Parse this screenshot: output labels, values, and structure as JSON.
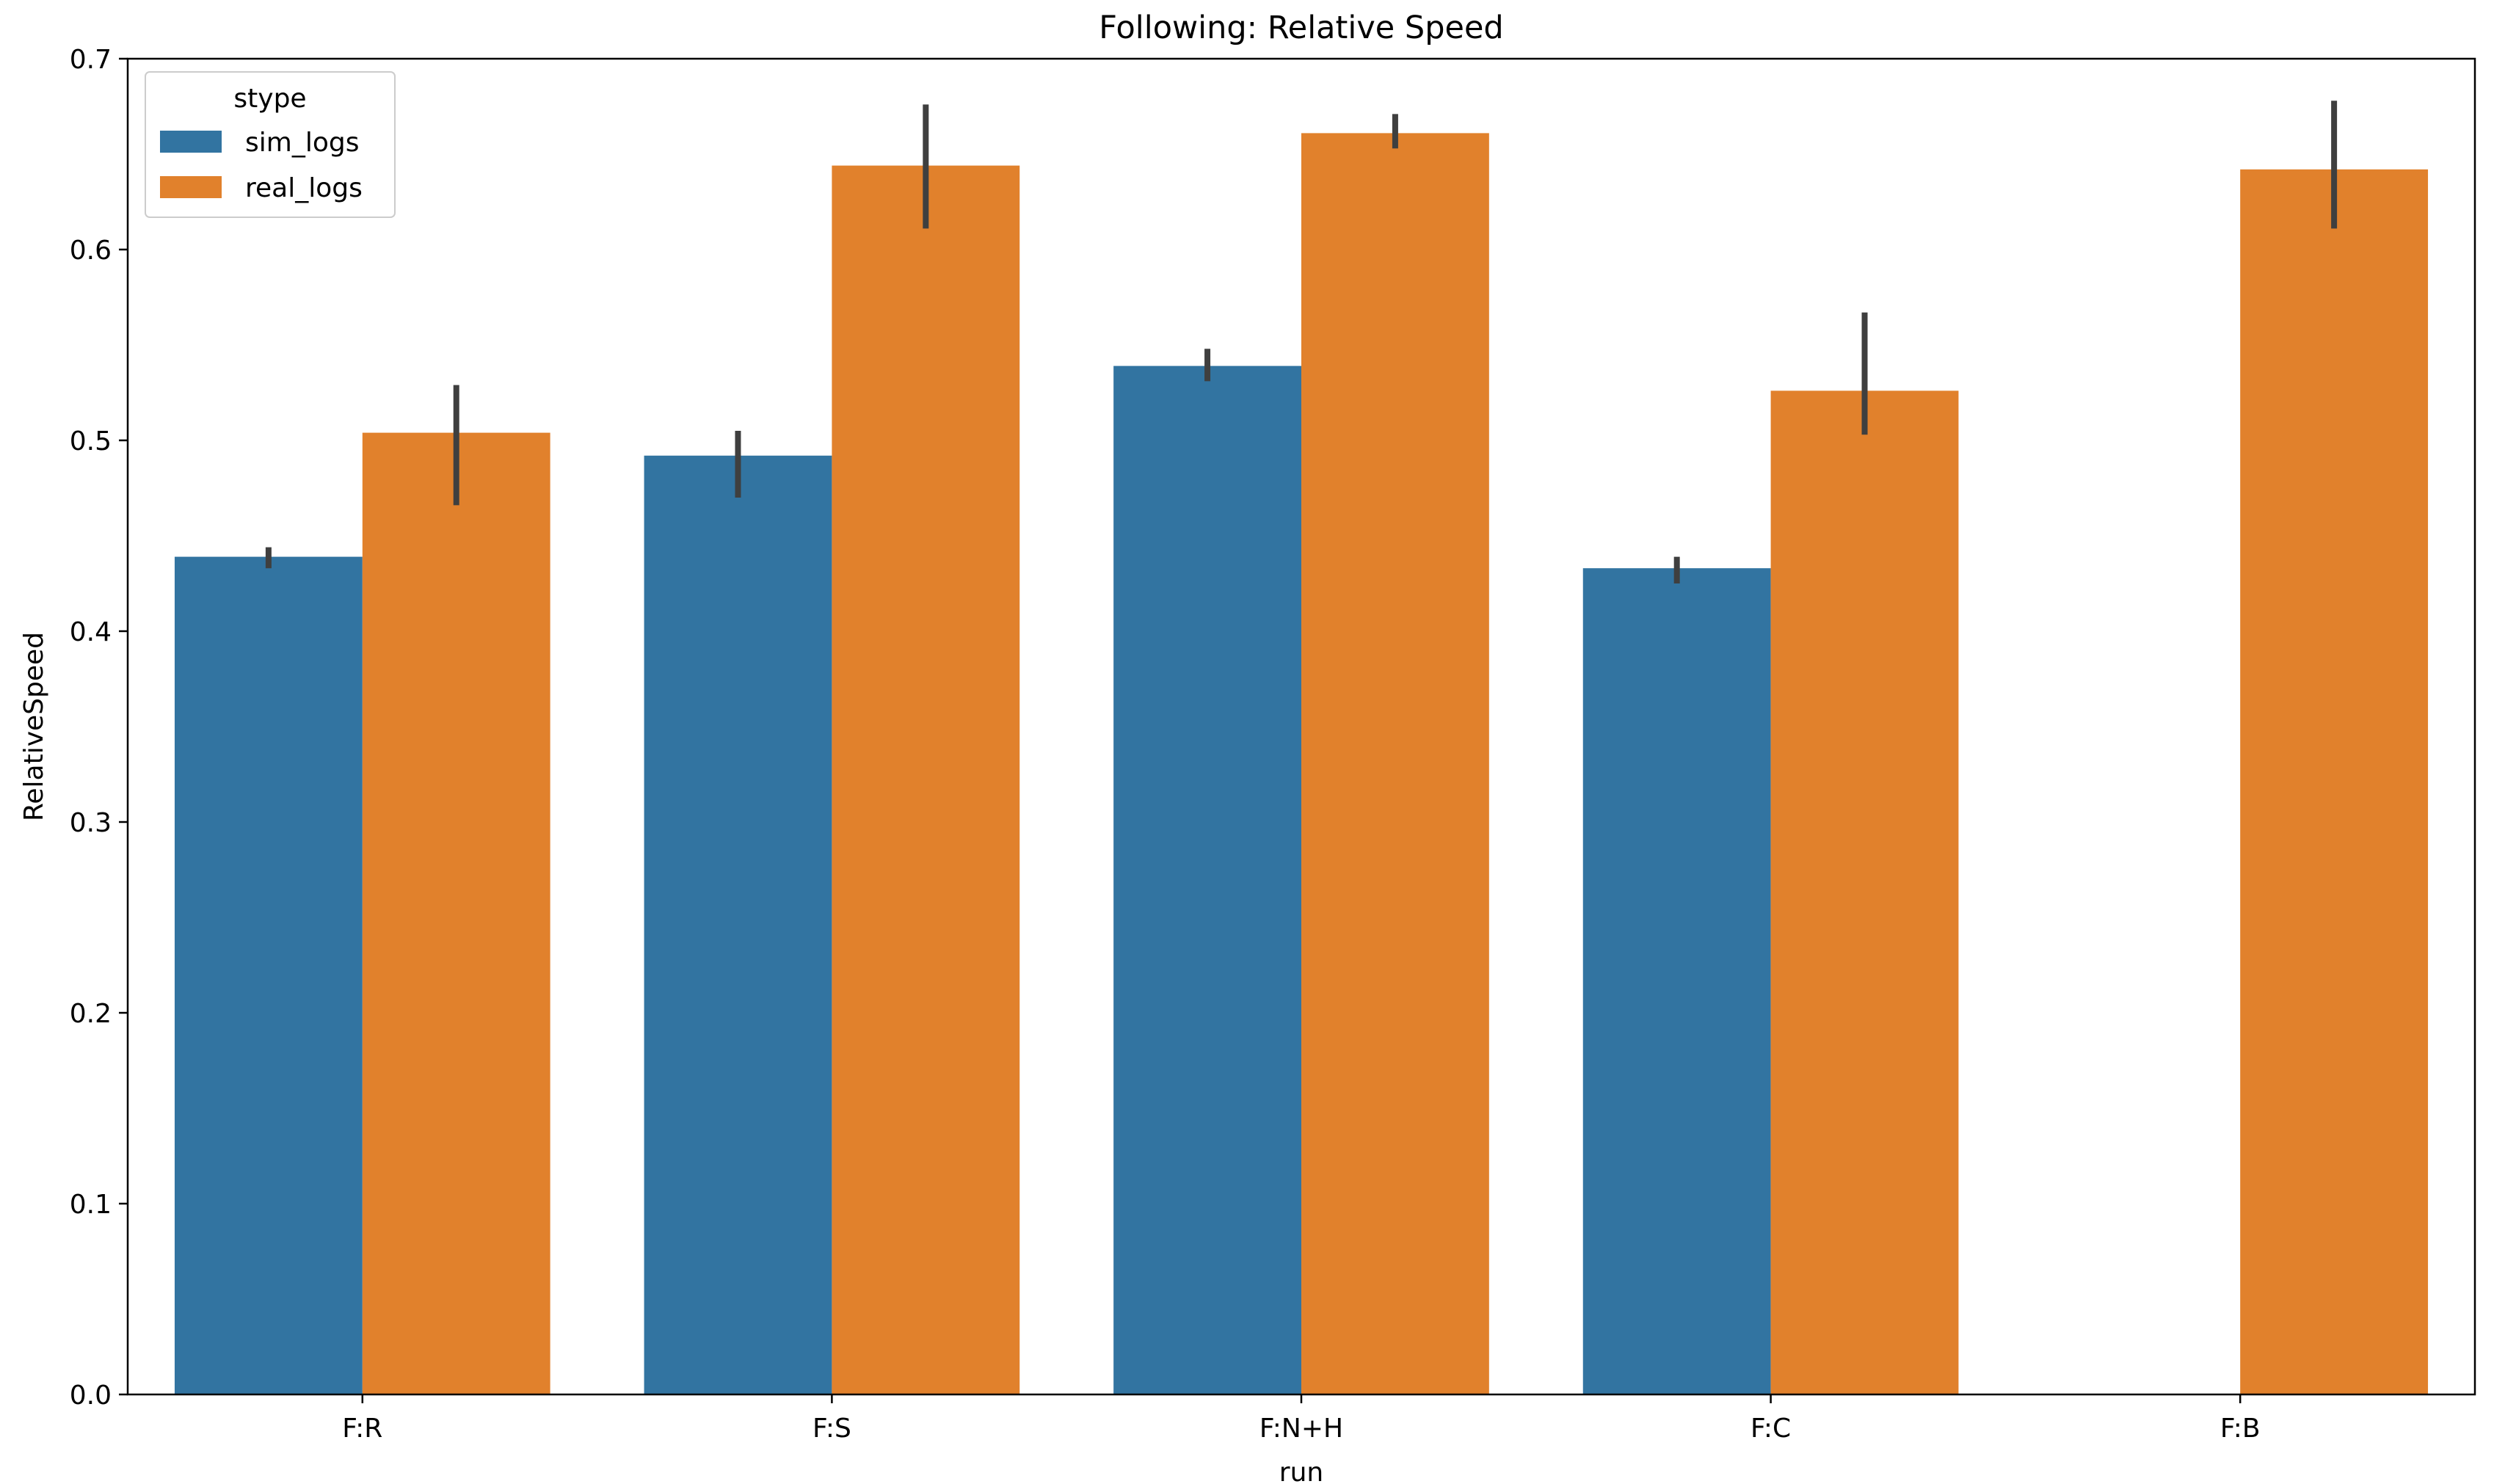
{
  "chart_data": {
    "type": "bar",
    "title": "Following: Relative Speed",
    "xlabel": "run",
    "ylabel": "RelativeSpeed",
    "categories": [
      "F:R",
      "F:S",
      "F:N+H",
      "F:C",
      "F:B"
    ],
    "ylim": [
      0,
      0.7
    ],
    "yticks": [
      0.0,
      0.1,
      0.2,
      0.3,
      0.4,
      0.5,
      0.6,
      0.7
    ],
    "ytick_labels": [
      "0.0",
      "0.1",
      "0.2",
      "0.3",
      "0.4",
      "0.5",
      "0.6",
      "0.7"
    ],
    "grid": false,
    "legend": {
      "title": "stype",
      "position": "top-left"
    },
    "series": [
      {
        "name": "sim_logs",
        "color": "#3274a1",
        "values": [
          0.439,
          0.492,
          0.539,
          0.433,
          null
        ],
        "ci_low": [
          0.433,
          0.47,
          0.531,
          0.425,
          null
        ],
        "ci_high": [
          0.444,
          0.505,
          0.548,
          0.439,
          null
        ]
      },
      {
        "name": "real_logs",
        "color": "#e1812c",
        "values": [
          0.504,
          0.644,
          0.661,
          0.526,
          0.642
        ],
        "ci_low": [
          0.466,
          0.611,
          0.653,
          0.503,
          0.611
        ],
        "ci_high": [
          0.529,
          0.676,
          0.671,
          0.567,
          0.678
        ]
      }
    ],
    "errorbar_color": "#3f3f3f"
  }
}
